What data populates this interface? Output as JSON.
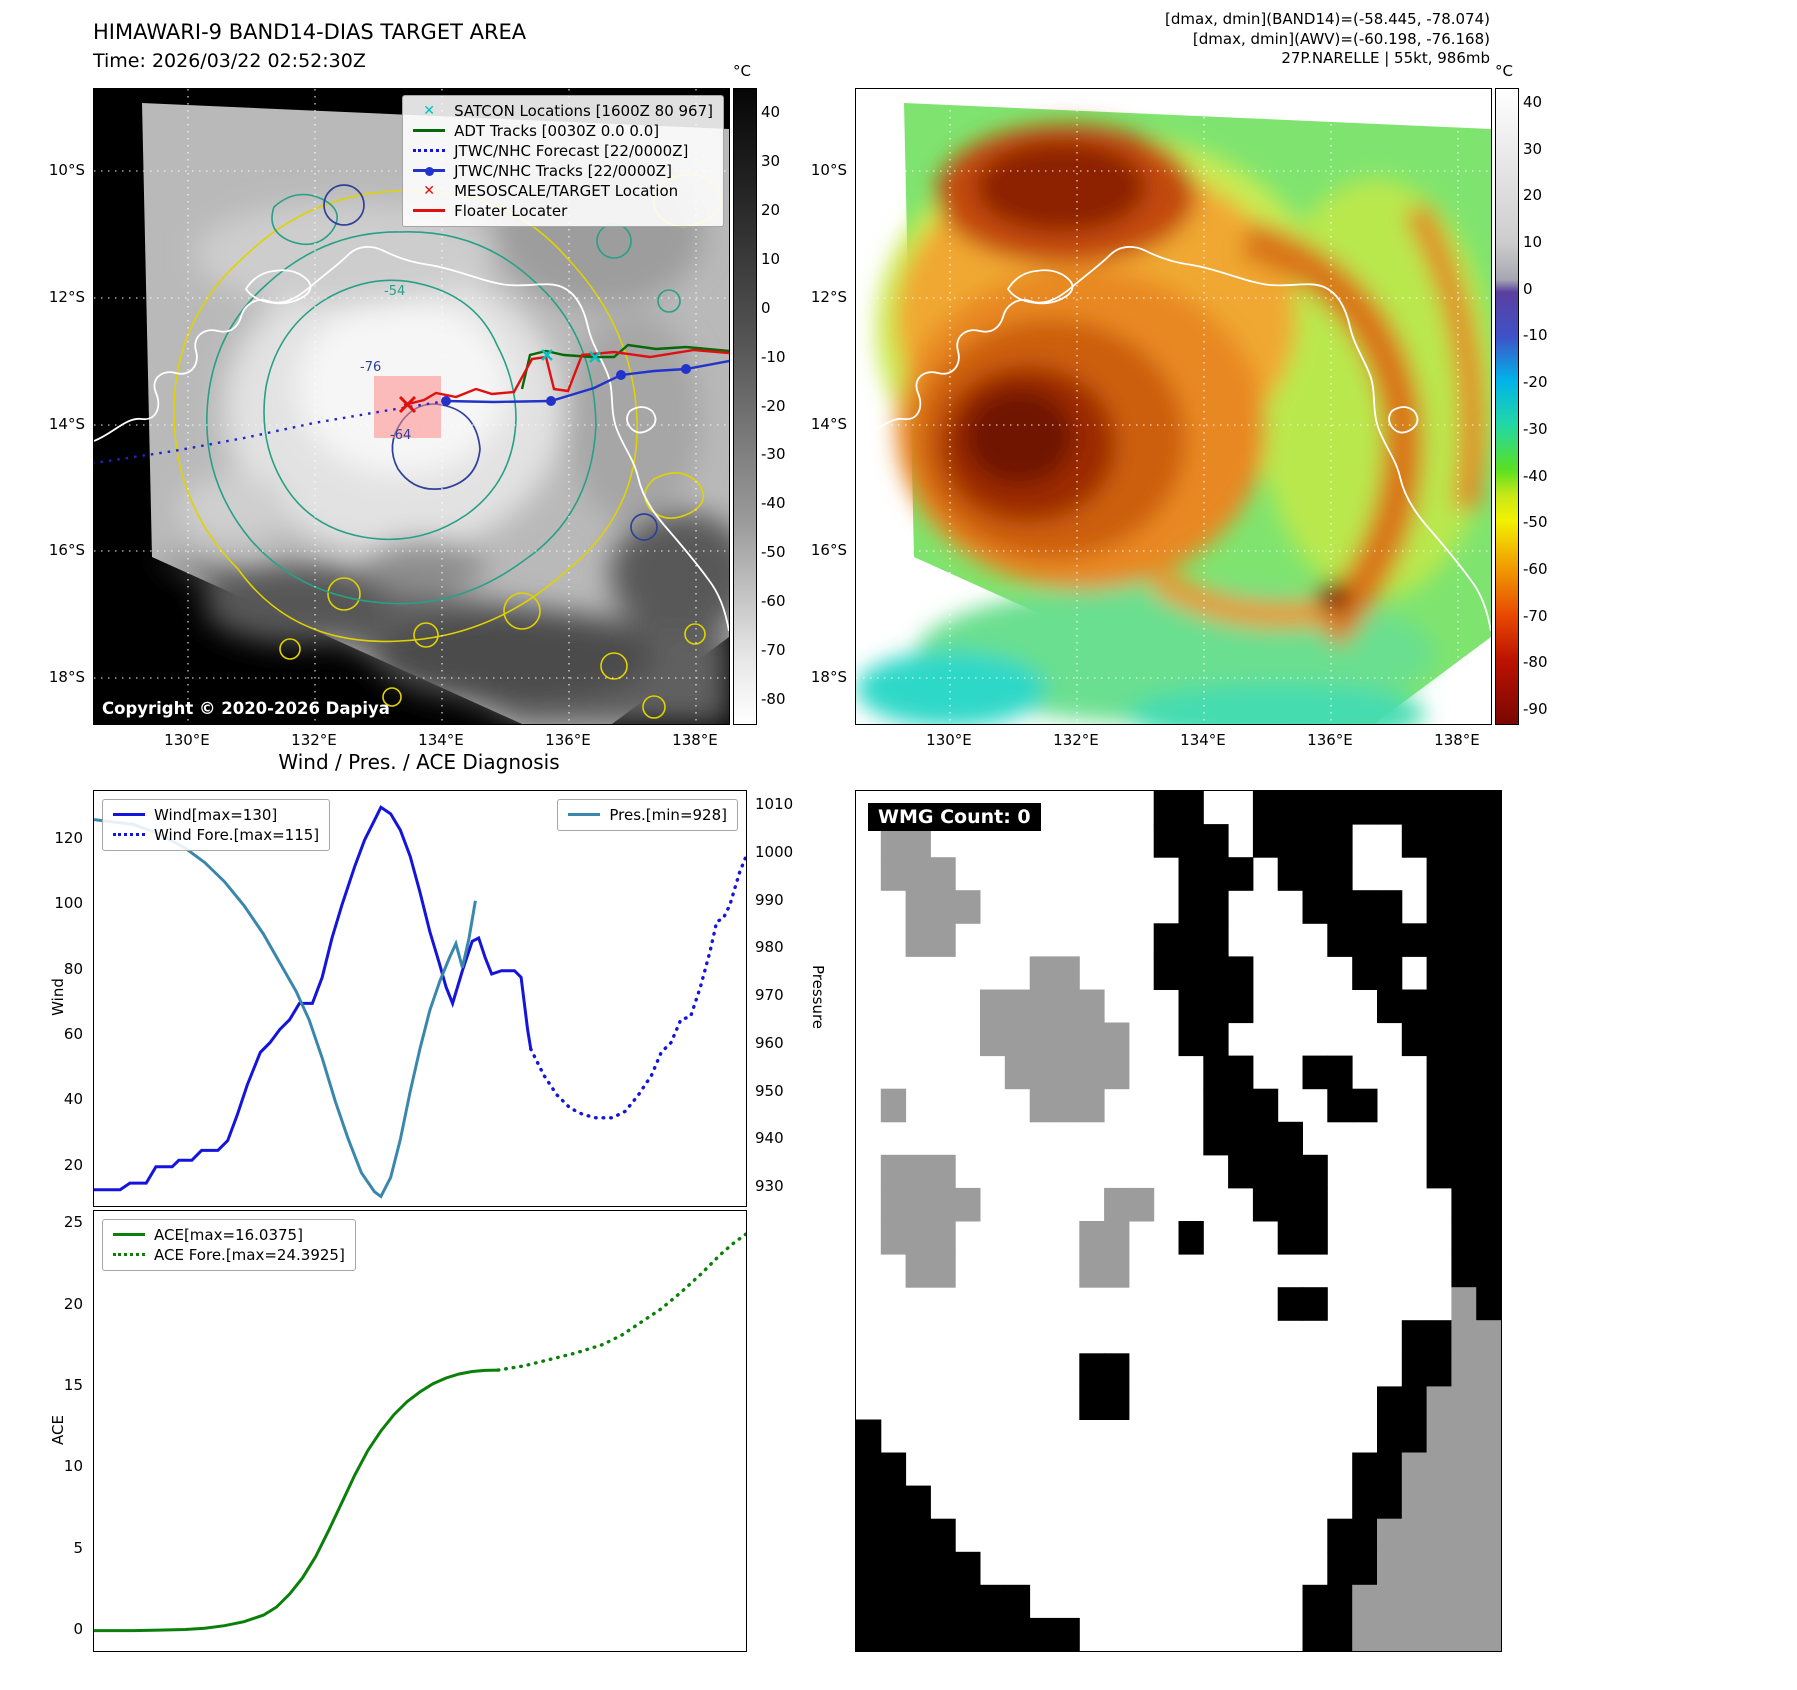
{
  "band14": {
    "title": "HIMAWARI-9 BAND14-DIAS TARGET AREA",
    "subtitle": "Time: 2026/03/22 02:52:30Z",
    "copyright": "Copyright © 2020-2026 Dapiya",
    "contour_labels": [
      "-54",
      "-76",
      "-64"
    ],
    "colorbar": {
      "unit": "°C",
      "ticks": [
        40,
        30,
        20,
        10,
        0,
        -10,
        -20,
        -30,
        -40,
        -50,
        -60,
        -70,
        -80
      ]
    },
    "lat_ticks": [
      "10°S",
      "12°S",
      "14°S",
      "16°S",
      "18°S"
    ],
    "lon_ticks": [
      "130°E",
      "132°E",
      "134°E",
      "136°E",
      "138°E"
    ],
    "legend": [
      {
        "label": "SATCON Locations [1600Z 80 967]",
        "color": "#00c2c2",
        "marker": "x"
      },
      {
        "label": "ADT Tracks [0030Z 0.0 0.0]",
        "color": "#066806",
        "marker": "line"
      },
      {
        "label": "JTWC/NHC Forecast [22/0000Z]",
        "color": "#1414dc",
        "marker": "dotted"
      },
      {
        "label": "JTWC/NHC Tracks [22/0000Z]",
        "color": "#2233cc",
        "marker": "line-dot"
      },
      {
        "label": "MESOSCALE/TARGET Location",
        "color": "#e01010",
        "marker": "x"
      },
      {
        "label": "Floater Locater",
        "color": "#e01010",
        "marker": "line"
      }
    ]
  },
  "awv": {
    "header_lines": [
      "[dmax, dmin](BAND14)=(-58.445, -78.074)",
      "[dmax, dmin](AWV)=(-60.198, -76.168)",
      "27P.NARELLE | 55kt, 986mb"
    ],
    "colorbar": {
      "unit": "°C",
      "ticks": [
        40,
        30,
        20,
        10,
        0,
        -10,
        -20,
        -30,
        -40,
        -50,
        -60,
        -70,
        -80,
        -90
      ]
    },
    "lat_ticks": [
      "10°S",
      "12°S",
      "14°S",
      "16°S",
      "18°S"
    ],
    "lon_ticks": [
      "130°E",
      "132°E",
      "134°E",
      "136°E",
      "138°E"
    ]
  },
  "diagnosis": {
    "title": "Wind / Pres. / ACE Diagnosis"
  },
  "wmg": {
    "label": "WMG Count: 0",
    "colors": {
      "B": "#000000",
      "W": "#ffffff",
      "G": "#9c9c9c"
    },
    "grid": [
      "WWWWWWWWWWWWBBWWBBBBBBBBBB",
      "WGGWWWWWWWWWBBBWBBBBWWBBBB",
      "WGGGWWWWWWWWWBBBWBBBWWWBBB",
      "WWGGGWWWWWWWWBBWWWBBBBWBBB",
      "WWGGWWWWWWWWBBBWWWWBBBBBBB",
      "WWWWWWWGGWWWBBBBWWWWBBWBBB",
      "WWWWWGGGGGWWWBBBWWWWWBBBBB",
      "WWWWWGGGGGGWWBBWWWWWWWBBBB",
      "WWWWWWGGGGGWWWBBWWBBWWWBBB",
      "WGWWWWWGGGWWWWBBBWWBBWWBBB",
      "WWWWWWWWWWWWWWBBBBWWWWWBBB",
      "WGGGWWWWWWWWWWWBBBBWWWWBBB",
      "WGGGGWWWWWGGWWWWBBBWWWWWBB",
      "WGGGWWWWWGGWWBWWWBBWWWWWBB",
      "WWGGWWWWWGGWWWWWWWWWWWWWBB",
      "WWWWWWWWWWWWWWWWWBBWWWWWGB",
      "WWWWWWWWWWWWWWWWWWWWWWBBGG",
      "WWWWWWWWWBBWWWWWWWWWWWBBGG",
      "WWWWWWWWWBBWWWWWWWWWWBBGGG",
      "BWWWWWWWWWWWWWWWWWWWWBBGGG",
      "BBWWWWWWWWWWWWWWWWWWBBGGGG",
      "BBBWWWWWWWWWWWWWWWWWBBGGGG",
      "BBBBWWWWWWWWWWWWWWWBBGGGGG",
      "BBBBBWWWWWWWWWWWWWWBBGGGGG",
      "BBBBBBBWWWWWWWWWWWBBGGGGGG",
      "BBBBBBBBBWWWWWWWWWBBGGGGGG"
    ]
  },
  "chart_data": [
    {
      "type": "line",
      "title": "Wind / Pres. / ACE Diagnosis",
      "ylabel": "Wind",
      "y2label": "Pressure",
      "ylim": [
        8,
        135
      ],
      "y2lim": [
        926,
        1013
      ],
      "yticks": [
        20,
        40,
        60,
        80,
        100,
        120
      ],
      "y2ticks": [
        930,
        940,
        950,
        960,
        970,
        980,
        990,
        1000,
        1010
      ],
      "xlim": [
        0,
        1
      ],
      "grid": false,
      "legend_position": "upper-left and upper-right",
      "series": [
        {
          "name": "Wind[max=130]",
          "axis": "y1",
          "style": "solid",
          "color": "#1414dc",
          "points": [
            [
              0,
              13
            ],
            [
              0.04,
              13
            ],
            [
              0.055,
              15
            ],
            [
              0.08,
              15
            ],
            [
              0.095,
              20
            ],
            [
              0.12,
              20
            ],
            [
              0.13,
              22
            ],
            [
              0.15,
              22
            ],
            [
              0.165,
              25
            ],
            [
              0.19,
              25
            ],
            [
              0.205,
              28
            ],
            [
              0.22,
              36
            ],
            [
              0.235,
              45
            ],
            [
              0.255,
              55
            ],
            [
              0.27,
              58
            ],
            [
              0.285,
              62
            ],
            [
              0.3,
              65
            ],
            [
              0.315,
              70
            ],
            [
              0.335,
              70
            ],
            [
              0.35,
              78
            ],
            [
              0.365,
              90
            ],
            [
              0.38,
              100
            ],
            [
              0.39,
              106
            ],
            [
              0.4,
              112
            ],
            [
              0.415,
              120
            ],
            [
              0.43,
              126
            ],
            [
              0.44,
              130
            ],
            [
              0.455,
              128
            ],
            [
              0.47,
              123
            ],
            [
              0.485,
              115
            ],
            [
              0.5,
              104
            ],
            [
              0.515,
              92
            ],
            [
              0.53,
              82
            ],
            [
              0.54,
              75
            ],
            [
              0.55,
              70
            ],
            [
              0.565,
              80
            ],
            [
              0.58,
              89
            ],
            [
              0.59,
              90
            ],
            [
              0.6,
              84
            ],
            [
              0.61,
              79
            ],
            [
              0.625,
              80
            ],
            [
              0.645,
              80
            ],
            [
              0.655,
              78
            ],
            [
              0.665,
              62
            ],
            [
              0.67,
              56
            ]
          ]
        },
        {
          "name": "Wind Fore.[max=115]",
          "axis": "y1",
          "style": "dotted",
          "color": "#1414dc",
          "points": [
            [
              0.67,
              56
            ],
            [
              0.69,
              48
            ],
            [
              0.71,
              42
            ],
            [
              0.73,
              38
            ],
            [
              0.75,
              36
            ],
            [
              0.77,
              35
            ],
            [
              0.795,
              35
            ],
            [
              0.815,
              37
            ],
            [
              0.835,
              42
            ],
            [
              0.855,
              48
            ],
            [
              0.87,
              55
            ],
            [
              0.885,
              58
            ],
            [
              0.9,
              65
            ],
            [
              0.915,
              66
            ],
            [
              0.93,
              75
            ],
            [
              0.945,
              86
            ],
            [
              0.955,
              95
            ],
            [
              0.965,
              96
            ],
            [
              0.975,
              100
            ],
            [
              0.99,
              110
            ],
            [
              1,
              115
            ]
          ]
        },
        {
          "name": "Pres.[min=928]",
          "axis": "y2",
          "style": "solid",
          "color": "#3a87ad",
          "points": [
            [
              0,
              1007
            ],
            [
              0.06,
              1006
            ],
            [
              0.1,
              1004
            ],
            [
              0.14,
              1001
            ],
            [
              0.17,
              998
            ],
            [
              0.2,
              994
            ],
            [
              0.23,
              989
            ],
            [
              0.26,
              983
            ],
            [
              0.285,
              977
            ],
            [
              0.31,
              971
            ],
            [
              0.33,
              965
            ],
            [
              0.35,
              957
            ],
            [
              0.37,
              948
            ],
            [
              0.39,
              940
            ],
            [
              0.41,
              933
            ],
            [
              0.43,
              929
            ],
            [
              0.44,
              928
            ],
            [
              0.455,
              932
            ],
            [
              0.47,
              940
            ],
            [
              0.485,
              950
            ],
            [
              0.5,
              959
            ],
            [
              0.515,
              967
            ],
            [
              0.53,
              973
            ],
            [
              0.545,
              978
            ],
            [
              0.555,
              981
            ],
            [
              0.565,
              976
            ],
            [
              0.575,
              982
            ],
            [
              0.585,
              990
            ]
          ]
        }
      ]
    },
    {
      "type": "line",
      "ylabel": "ACE",
      "ylim": [
        -1.2,
        25.8
      ],
      "yticks": [
        0,
        5,
        10,
        15,
        20,
        25
      ],
      "xlim": [
        0,
        1
      ],
      "grid": false,
      "legend_position": "upper-left",
      "series": [
        {
          "name": "ACE[max=16.0375]",
          "axis": "y1",
          "style": "solid",
          "color": "#0a800a",
          "points": [
            [
              0,
              0.05
            ],
            [
              0.06,
              0.05
            ],
            [
              0.1,
              0.08
            ],
            [
              0.14,
              0.12
            ],
            [
              0.17,
              0.2
            ],
            [
              0.2,
              0.35
            ],
            [
              0.23,
              0.6
            ],
            [
              0.26,
              1
            ],
            [
              0.28,
              1.5
            ],
            [
              0.3,
              2.3
            ],
            [
              0.32,
              3.3
            ],
            [
              0.34,
              4.6
            ],
            [
              0.36,
              6.2
            ],
            [
              0.38,
              7.9
            ],
            [
              0.4,
              9.6
            ],
            [
              0.42,
              11.1
            ],
            [
              0.44,
              12.3
            ],
            [
              0.46,
              13.3
            ],
            [
              0.48,
              14.1
            ],
            [
              0.5,
              14.7
            ],
            [
              0.52,
              15.2
            ],
            [
              0.54,
              15.55
            ],
            [
              0.56,
              15.8
            ],
            [
              0.58,
              15.95
            ],
            [
              0.6,
              16.02
            ],
            [
              0.62,
              16.04
            ]
          ]
        },
        {
          "name": "ACE Fore.[max=24.3925]",
          "axis": "y1",
          "style": "dotted",
          "color": "#0a800a",
          "points": [
            [
              0.62,
              16.04
            ],
            [
              0.66,
              16.3
            ],
            [
              0.7,
              16.7
            ],
            [
              0.74,
              17.1
            ],
            [
              0.78,
              17.6
            ],
            [
              0.81,
              18.2
            ],
            [
              0.84,
              19
            ],
            [
              0.87,
              19.8
            ],
            [
              0.9,
              20.8
            ],
            [
              0.93,
              21.9
            ],
            [
              0.96,
              23.1
            ],
            [
              0.98,
              23.8
            ],
            [
              1,
              24.39
            ]
          ]
        }
      ]
    }
  ]
}
